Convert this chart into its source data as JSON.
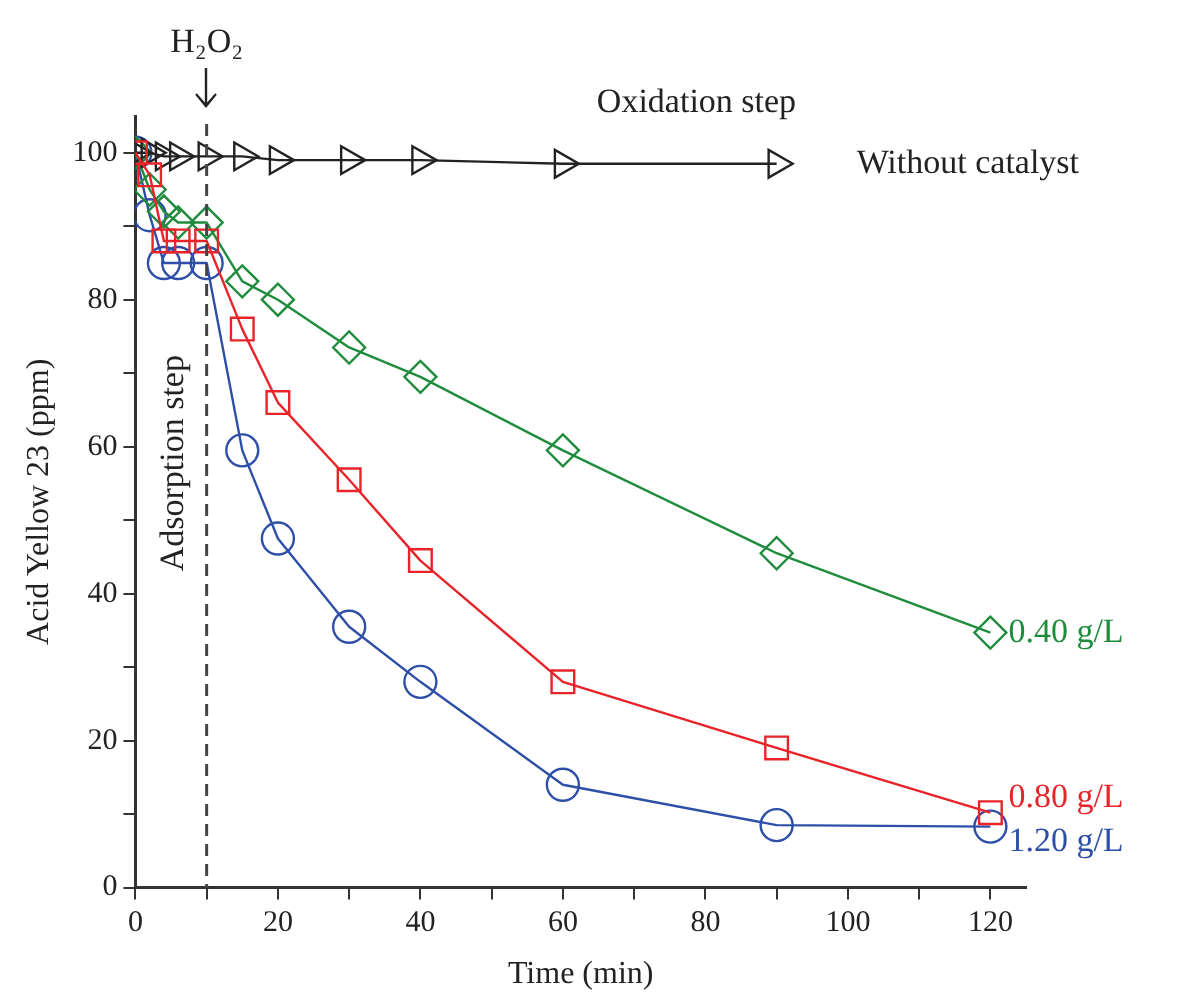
{
  "chart_data": {
    "type": "line",
    "xlabel": "Time (min)",
    "ylabel": "Acid Yellow 23 (ppm)",
    "xlim": [
      0,
      125
    ],
    "ylim": [
      0,
      105
    ],
    "xticks": [
      0,
      {
        "value": 10,
        "label": null
      },
      20,
      {
        "value": 30,
        "label": null
      },
      40,
      {
        "value": 50,
        "label": null
      },
      60,
      {
        "value": 70,
        "label": null
      },
      80,
      {
        "value": 90,
        "label": null
      },
      100,
      {
        "value": 110,
        "label": null
      },
      120
    ],
    "yticks": [
      0,
      {
        "value": 10,
        "label": null
      },
      20,
      {
        "value": 30,
        "label": null
      },
      40,
      {
        "value": 50,
        "label": null
      },
      60,
      {
        "value": 70,
        "label": null
      },
      80,
      {
        "value": 90,
        "label": null
      },
      100
    ],
    "grid": false,
    "legend": false,
    "line_style": "solid",
    "series": [
      {
        "name": "Without catalyst",
        "color": "#222222",
        "marker": "triangle",
        "x": [
          0,
          2,
          4,
          6,
          10,
          15,
          20,
          30,
          40,
          60,
          90
        ],
        "values": [
          100,
          100,
          99.5,
          99.5,
          99.5,
          99.5,
          99,
          99,
          99,
          98.5,
          98.5
        ]
      },
      {
        "name": "0.40 g/L",
        "color": "#1e8c3c",
        "marker": "diamond",
        "x": [
          0,
          2,
          4,
          6,
          10,
          15,
          20,
          30,
          40,
          60,
          90,
          120
        ],
        "values": [
          100,
          95,
          92,
          90.5,
          90.5,
          82.5,
          80,
          73.5,
          69.5,
          59.5,
          45.5,
          34.7
        ]
      },
      {
        "name": "0.80 g/L",
        "color": "#e8242a",
        "marker": "square",
        "x": [
          0,
          2,
          4,
          6,
          10,
          15,
          20,
          30,
          40,
          60,
          90,
          120
        ],
        "values": [
          100,
          97,
          88,
          88,
          88,
          76,
          66,
          55.5,
          44.5,
          28,
          19,
          10.2
        ]
      },
      {
        "name": "1.20 g/L",
        "color": "#2e4fa8",
        "marker": "circle",
        "x": [
          0,
          2,
          4,
          6,
          10,
          15,
          20,
          30,
          40,
          60,
          90,
          120
        ],
        "values": [
          100,
          91.5,
          85,
          85,
          85,
          59.5,
          47.5,
          35.5,
          28,
          14,
          8.5,
          8.3
        ]
      }
    ],
    "ref_lines": [
      {
        "axis": "x",
        "value": 10,
        "label": "Adsorption step",
        "color": "#444444",
        "line_style": "dashed"
      }
    ],
    "annotations": [
      "H₂O₂",
      "Oxidation step"
    ]
  }
}
